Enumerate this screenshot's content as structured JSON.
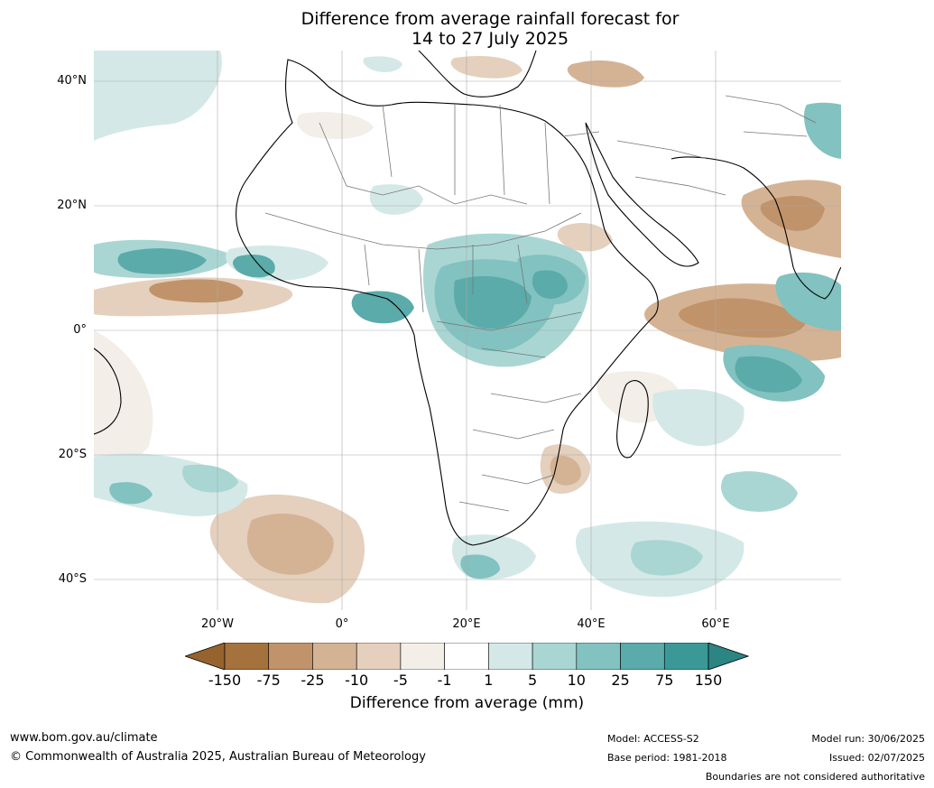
{
  "title": {
    "line1": "Difference from average rainfall forecast for",
    "line2": "14 to 27 July 2025"
  },
  "map": {
    "lat_labels": [
      "40°N",
      "20°N",
      "0°",
      "20°S",
      "40°S"
    ],
    "lon_labels": [
      "20°W",
      "0°",
      "20°E",
      "40°E",
      "60°E"
    ]
  },
  "legend": {
    "title": "Difference from average (mm)",
    "ticks": [
      "-150",
      "-75",
      "-25",
      "-10",
      "-5",
      "-1",
      "1",
      "5",
      "10",
      "25",
      "75",
      "150"
    ],
    "colors": [
      "#a5713c",
      "#c0936a",
      "#d4b394",
      "#e4d0bd",
      "#f3eee8",
      "#ffffff",
      "#d4e9e7",
      "#a9d6d3",
      "#82c2c0",
      "#5aaba9",
      "#3a9997",
      "#2e8e8c"
    ],
    "under_color": "#96632f",
    "over_color": "#2b8583"
  },
  "footer": {
    "website": "www.bom.gov.au/climate",
    "copyright": "© Commonwealth of Australia 2025, Australian Bureau of Meteorology",
    "model": "Model: ACCESS-S2",
    "base_period": "Base period: 1981-2018",
    "model_run": "Model run: 30/06/2025",
    "issued": "Issued: 02/07/2025",
    "disclaimer": "Boundaries are not considered authoritative"
  }
}
